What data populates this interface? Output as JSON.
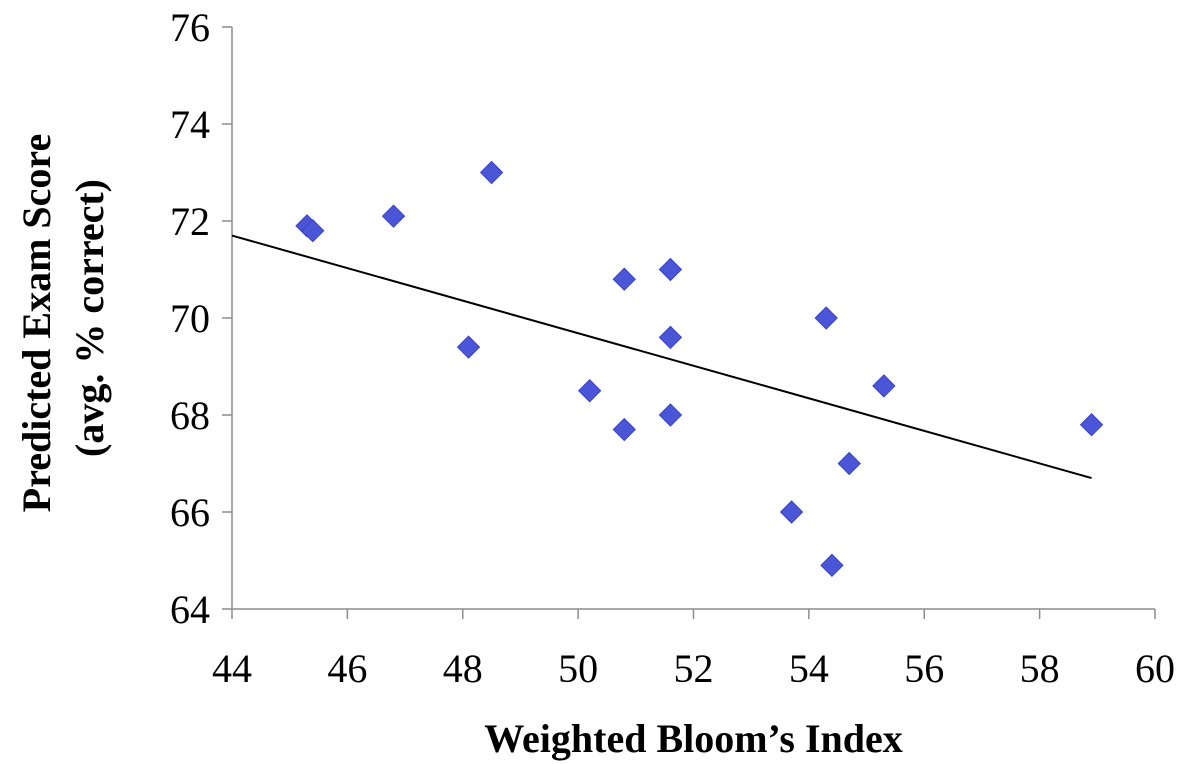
{
  "chart_data": {
    "type": "scatter",
    "xlabel": "Weighted Bloom’s Index",
    "ylabel_lines": [
      "Predicted Exam Score",
      "(avg. % correct)"
    ],
    "xlim": [
      44,
      60
    ],
    "ylim": [
      64,
      76
    ],
    "x_ticks": [
      44,
      46,
      48,
      50,
      52,
      54,
      56,
      58,
      60
    ],
    "y_ticks": [
      64,
      66,
      68,
      70,
      72,
      74,
      76
    ],
    "grid": false,
    "legend": "none",
    "marker": "diamond",
    "marker_color": "#4a55d8",
    "trendline": {
      "type": "linear",
      "color": "#000000",
      "x": [
        44,
        58.9
      ],
      "y": [
        71.7,
        66.7
      ]
    },
    "points": [
      {
        "x": 45.3,
        "y": 71.9
      },
      {
        "x": 45.4,
        "y": 71.8
      },
      {
        "x": 46.8,
        "y": 72.1
      },
      {
        "x": 48.1,
        "y": 69.4
      },
      {
        "x": 48.5,
        "y": 73.0
      },
      {
        "x": 50.2,
        "y": 68.5
      },
      {
        "x": 50.8,
        "y": 70.8
      },
      {
        "x": 50.8,
        "y": 67.7
      },
      {
        "x": 51.6,
        "y": 71.0
      },
      {
        "x": 51.6,
        "y": 69.6
      },
      {
        "x": 51.6,
        "y": 68.0
      },
      {
        "x": 53.7,
        "y": 66.0
      },
      {
        "x": 54.3,
        "y": 70.0
      },
      {
        "x": 54.4,
        "y": 64.9
      },
      {
        "x": 54.7,
        "y": 67.0
      },
      {
        "x": 55.3,
        "y": 68.6
      },
      {
        "x": 58.9,
        "y": 67.8
      }
    ]
  }
}
